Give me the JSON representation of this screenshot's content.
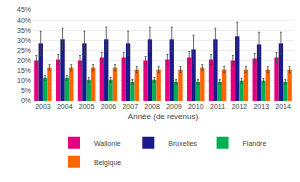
{
  "chart_data": {
    "type": "bar",
    "xlabel": "Année (de revenus)",
    "categories": [
      "2003",
      "2004",
      "2005",
      "2006",
      "2007",
      "2008",
      "2009",
      "2010",
      "2011",
      "2012",
      "2013",
      "2014"
    ],
    "series": [
      {
        "name": "Wallonie",
        "color": "#e6007e",
        "values": [
          0.2,
          0.205,
          0.2,
          0.215,
          0.215,
          0.2,
          0.205,
          0.215,
          0.205,
          0.2,
          0.21,
          0.215
        ],
        "errors": [
          0.025,
          0.025,
          0.025,
          0.025,
          0.025,
          0.02,
          0.025,
          0.03,
          0.025,
          0.025,
          0.025,
          0.025
        ]
      },
      {
        "name": "Bruxelles",
        "color": "#1a1a8c",
        "values": [
          0.285,
          0.305,
          0.285,
          0.305,
          0.285,
          0.305,
          0.305,
          0.255,
          0.305,
          0.32,
          0.28,
          0.285
        ],
        "errors": [
          0.06,
          0.055,
          0.06,
          0.06,
          0.06,
          0.06,
          0.06,
          0.07,
          0.055,
          0.07,
          0.06,
          0.055
        ]
      },
      {
        "name": "Flandre",
        "color": "#00b050",
        "values": [
          0.115,
          0.115,
          0.105,
          0.105,
          0.095,
          0.105,
          0.095,
          0.095,
          0.095,
          0.1,
          0.1,
          0.095
        ],
        "errors": [
          0.012,
          0.012,
          0.012,
          0.012,
          0.012,
          0.012,
          0.012,
          0.012,
          0.012,
          0.012,
          0.012,
          0.012
        ]
      },
      {
        "name": "Belgique",
        "color": "#ff6600",
        "values": [
          0.165,
          0.165,
          0.165,
          0.165,
          0.155,
          0.155,
          0.155,
          0.165,
          0.155,
          0.155,
          0.155,
          0.155
        ],
        "errors": [
          0.015,
          0.015,
          0.015,
          0.015,
          0.015,
          0.015,
          0.015,
          0.015,
          0.015,
          0.015,
          0.015,
          0.015
        ]
      }
    ],
    "ylim": [
      0,
      0.45
    ],
    "yticks": [
      {
        "value": 0.0,
        "label": "0%"
      },
      {
        "value": 0.05,
        "label": "5%"
      },
      {
        "value": 0.1,
        "label": "10%"
      },
      {
        "value": 0.15,
        "label": "15%"
      },
      {
        "value": 0.2,
        "label": "20%"
      },
      {
        "value": 0.25,
        "label": "25%"
      },
      {
        "value": 0.3,
        "label": "30%"
      },
      {
        "value": 0.35,
        "label": "35%"
      },
      {
        "value": 0.4,
        "label": "40%"
      },
      {
        "value": 0.45,
        "label": "45%"
      }
    ],
    "grid": true,
    "legend": "bottom"
  }
}
